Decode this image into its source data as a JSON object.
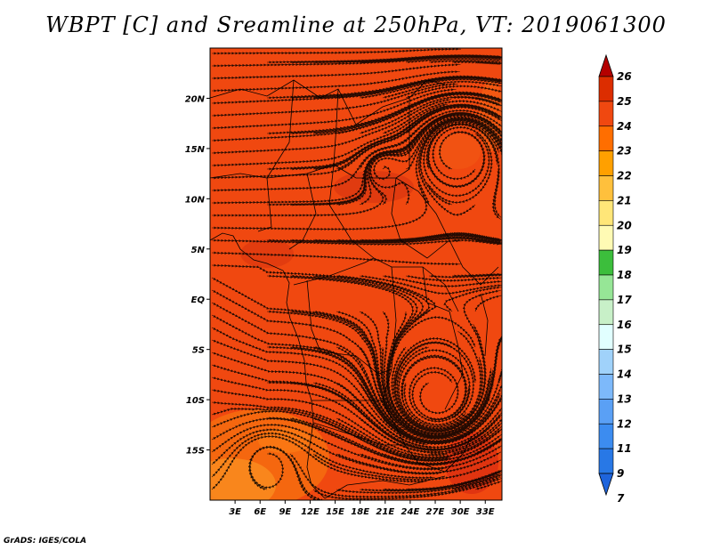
{
  "title": "WBPT [C] and Sreamline at 250hPa, VT: 2019061300",
  "credit": "GrADS: IGES/COLA",
  "map": {
    "lon_range": [
      0,
      35
    ],
    "lat_range": [
      -20,
      25
    ],
    "lon_ticks": [
      3,
      6,
      9,
      12,
      15,
      18,
      21,
      24,
      27,
      30,
      33
    ],
    "lon_tick_labels": [
      "3E",
      "6E",
      "9E",
      "12E",
      "15E",
      "18E",
      "21E",
      "24E",
      "27E",
      "30E",
      "33E"
    ],
    "lat_ticks": [
      20,
      15,
      10,
      5,
      0,
      -5,
      -10,
      -15
    ],
    "lat_tick_labels": [
      "20N",
      "15N",
      "10N",
      "5N",
      "EQ",
      "5S",
      "10S",
      "15S"
    ],
    "field_color": "#f04810"
  },
  "colorbar": {
    "levels": [
      "7",
      "9",
      "11",
      "12",
      "13",
      "14",
      "15",
      "16",
      "17",
      "18",
      "19",
      "20",
      "21",
      "22",
      "23",
      "24",
      "25",
      "26"
    ],
    "colors": [
      "#1e64dc",
      "#2878e6",
      "#3c8cf0",
      "#5aa0f5",
      "#7db9fa",
      "#a0d2fa",
      "#e1ffff",
      "#c8f0c8",
      "#96e696",
      "#3cbe3c",
      "#fffab4",
      "#ffe678",
      "#ffc03c",
      "#ffa000",
      "#ff6e00",
      "#f04810",
      "#dc2d00",
      "#b40000"
    ]
  }
}
